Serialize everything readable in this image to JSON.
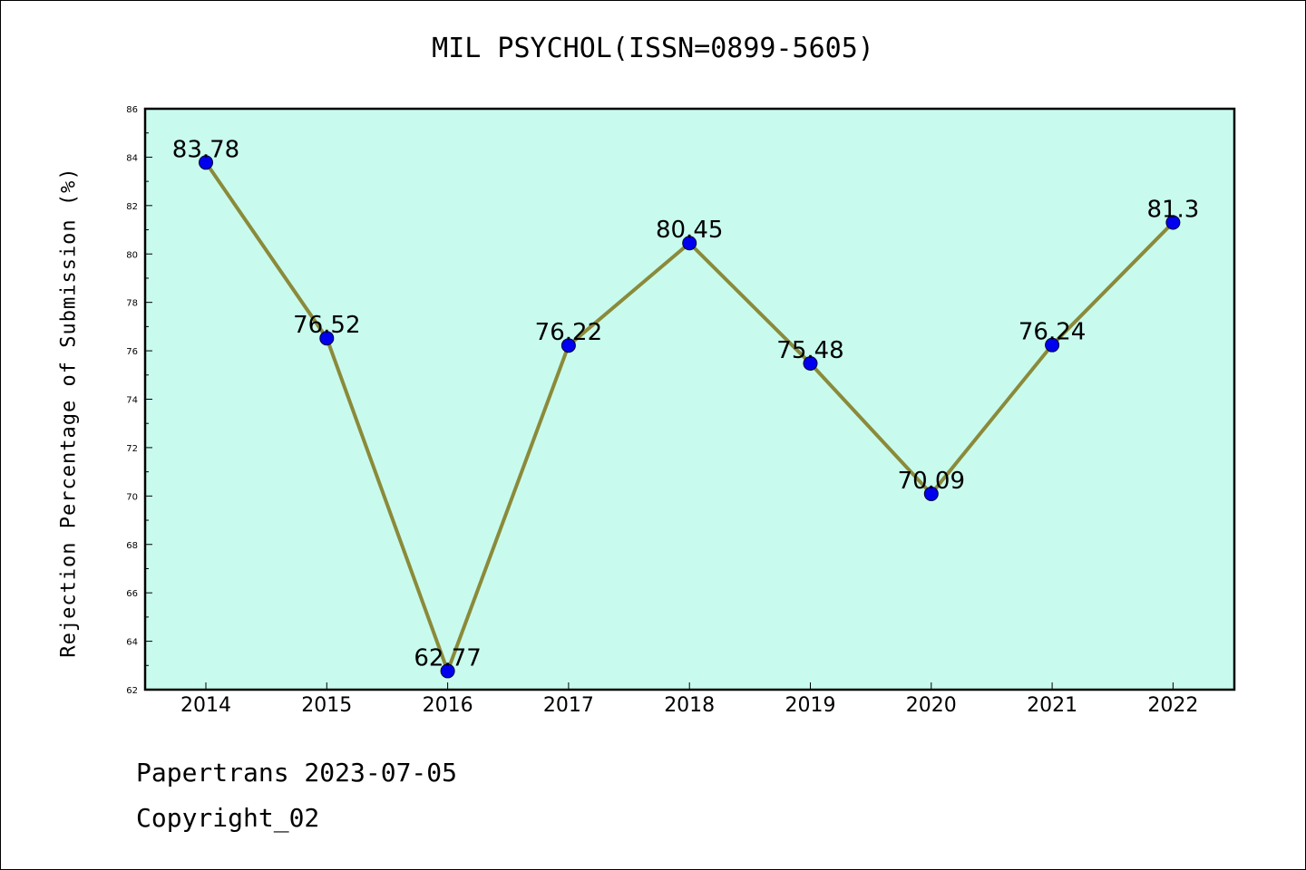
{
  "chart_data": {
    "type": "line",
    "title": "MIL PSYCHOL(ISSN=0899-5605)",
    "xlabel": "",
    "ylabel": "Rejection Percentage of Submission (%)",
    "categories": [
      "2014",
      "2015",
      "2016",
      "2017",
      "2018",
      "2019",
      "2020",
      "2021",
      "2022"
    ],
    "series": [
      {
        "values": [
          83.78,
          76.52,
          62.77,
          76.22,
          80.45,
          75.48,
          70.09,
          76.24,
          81.3
        ]
      }
    ],
    "data_labels": [
      "83.78",
      "76.52",
      "62.77",
      "76.22",
      "80.45",
      "75.48",
      "70.09",
      "76.24",
      "81.3"
    ],
    "ylim": [
      62,
      86
    ],
    "yticks": [
      62,
      64,
      66,
      68,
      70,
      72,
      74,
      76,
      78,
      80,
      82,
      84,
      86
    ],
    "grid": false,
    "colors": {
      "plot_background": "#c8fbee",
      "line": "#8b8a3a",
      "marker": "#0000ee",
      "frame": "#000000"
    }
  },
  "footer": {
    "line1": "Papertrans 2023-07-05",
    "line2": "Copyright_02"
  }
}
